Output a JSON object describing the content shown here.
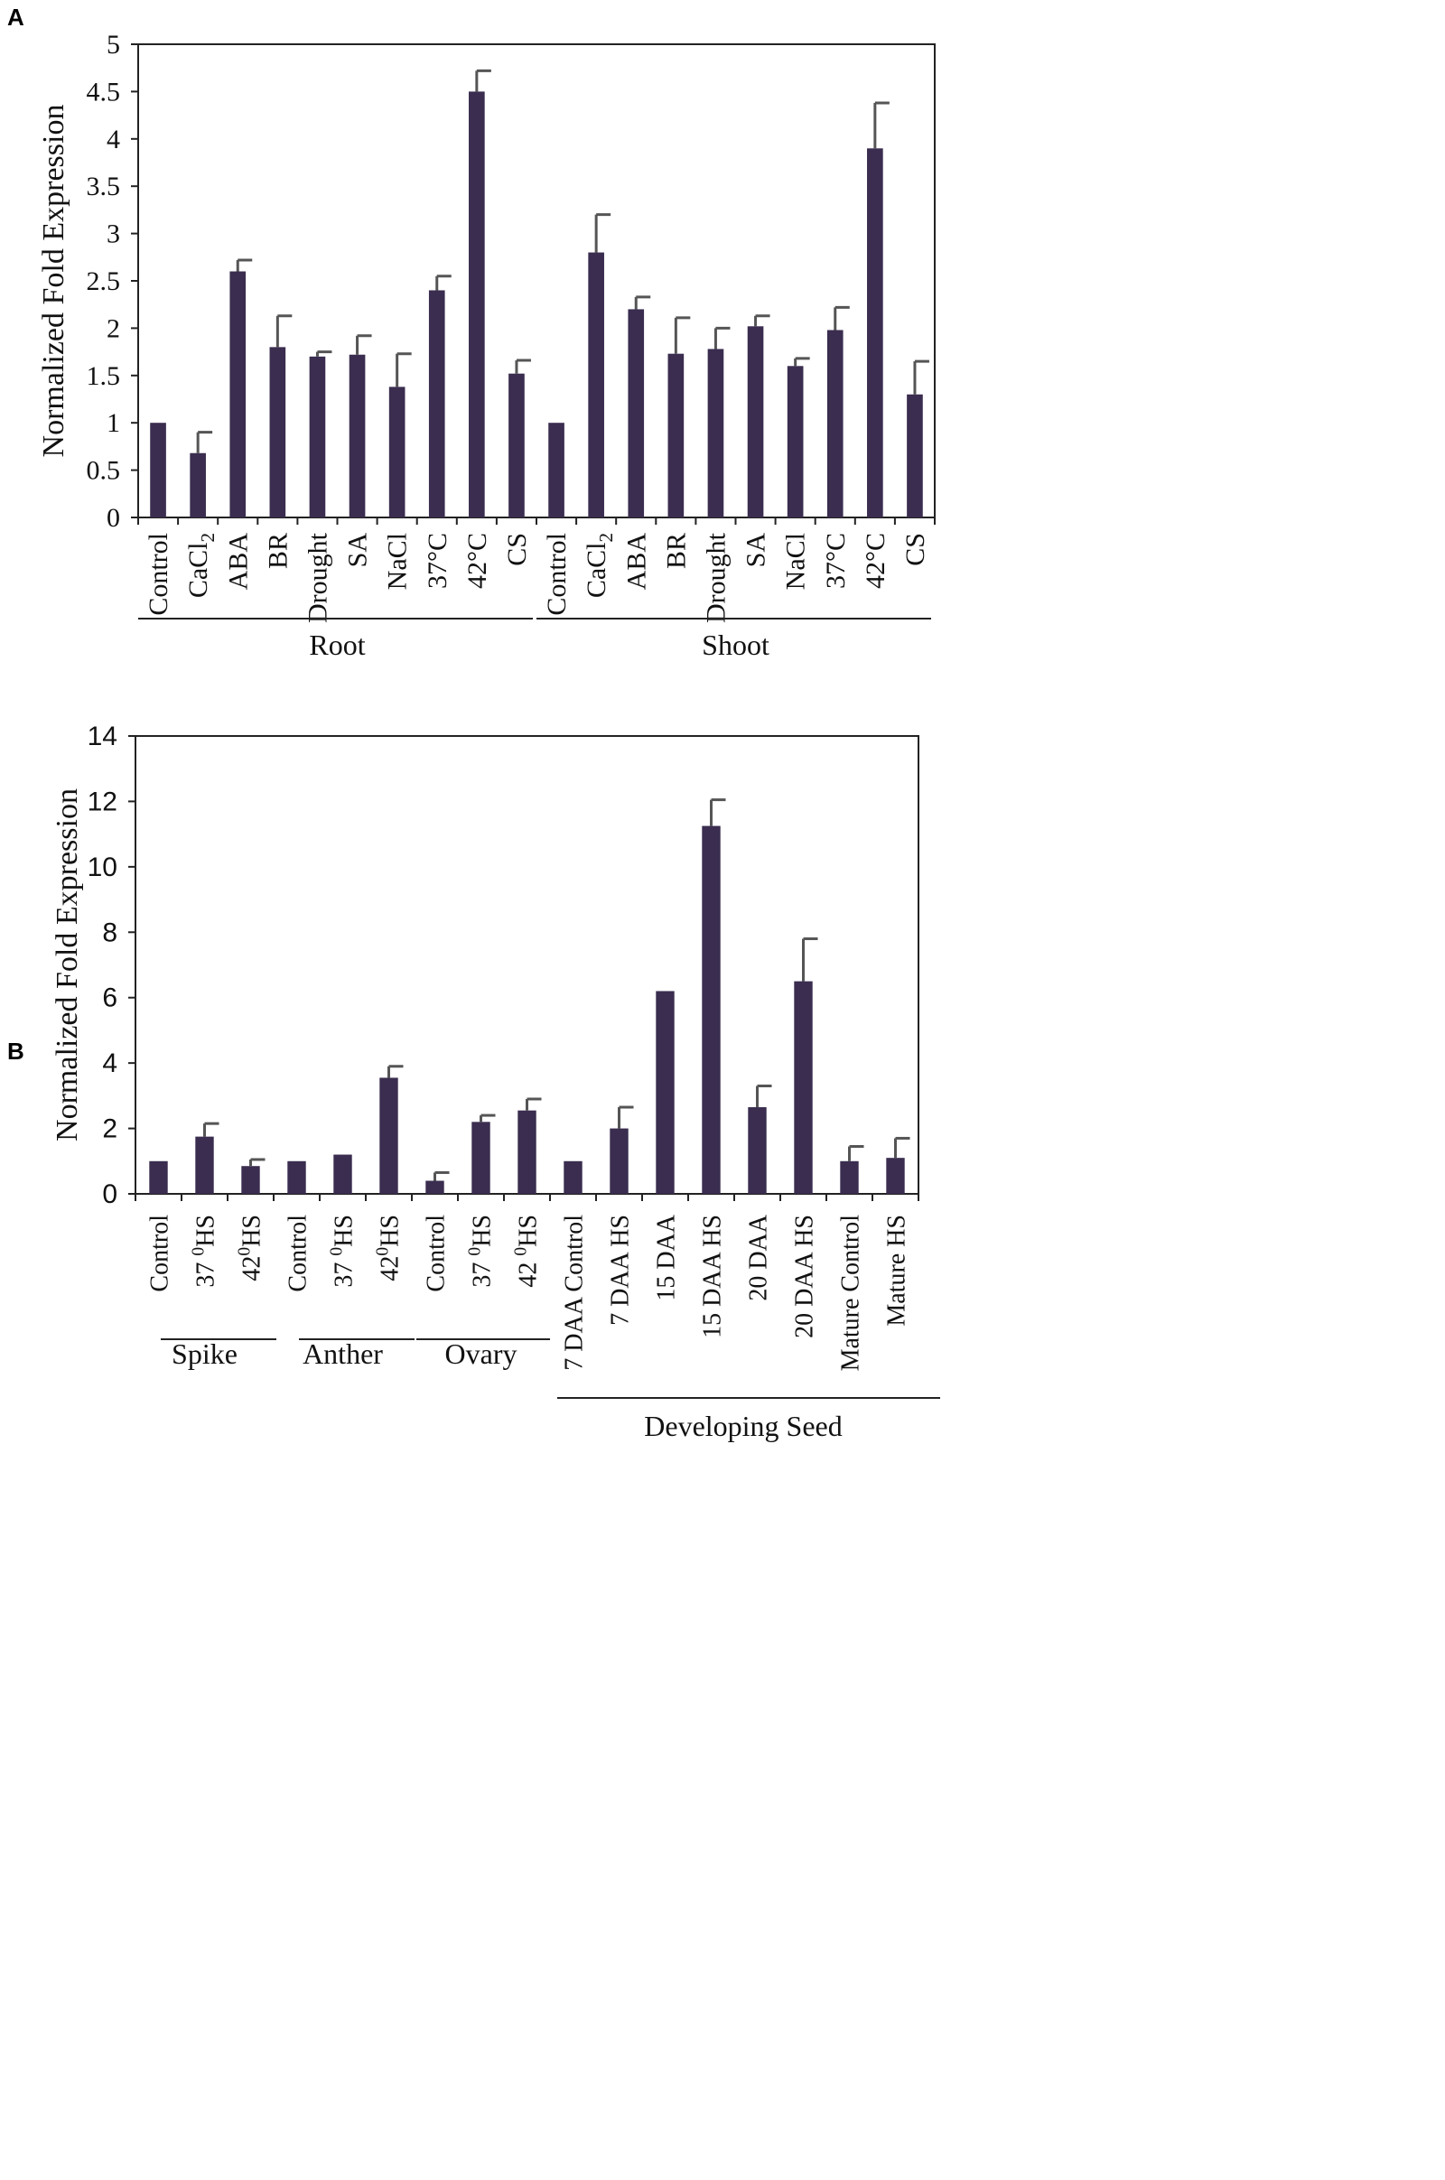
{
  "colors": {
    "bar": "#3a2d4f",
    "errorbar": "#555555",
    "axis": "#222222",
    "text": "#111111"
  },
  "chart_data": [
    {
      "panel": "A",
      "type": "bar",
      "ylabel": "Normalized Fold Expression",
      "ylim": [
        0,
        5
      ],
      "yticks": [
        "0",
        "0.5",
        "1",
        "1.5",
        "2",
        "2.5",
        "3",
        "3.5",
        "4",
        "4.5",
        "5"
      ],
      "categories": [
        {
          "label": "Control"
        },
        {
          "label": "CaCl",
          "sub": "2"
        },
        {
          "label": "ABA"
        },
        {
          "label": "BR"
        },
        {
          "label": "Drought"
        },
        {
          "label": "SA"
        },
        {
          "label": "NaCl"
        },
        {
          "label": "37°C"
        },
        {
          "label": "42°C"
        },
        {
          "label": "CS"
        },
        {
          "label": "Control"
        },
        {
          "label": "CaCl",
          "sub": "2"
        },
        {
          "label": "ABA"
        },
        {
          "label": "BR"
        },
        {
          "label": "Drought"
        },
        {
          "label": "SA"
        },
        {
          "label": "NaCl"
        },
        {
          "label": "37°C"
        },
        {
          "label": "42°C"
        },
        {
          "label": "CS"
        }
      ],
      "values": [
        1.0,
        0.68,
        2.6,
        1.8,
        1.7,
        1.72,
        1.38,
        2.4,
        4.5,
        1.52,
        1.0,
        2.8,
        2.2,
        1.73,
        1.78,
        2.02,
        1.6,
        1.98,
        3.9,
        1.3
      ],
      "errors": [
        0.0,
        0.22,
        0.12,
        0.33,
        0.05,
        0.2,
        0.35,
        0.15,
        0.22,
        0.14,
        0.0,
        0.4,
        0.13,
        0.38,
        0.22,
        0.11,
        0.08,
        0.24,
        0.48,
        0.35
      ],
      "groups": [
        {
          "name": "Root",
          "from": 0,
          "to": 9
        },
        {
          "name": "Shoot",
          "from": 10,
          "to": 19
        }
      ]
    },
    {
      "panel": "B",
      "type": "bar",
      "ylabel": "Normalized Fold Expression",
      "ylim": [
        0,
        14
      ],
      "yticks": [
        "0",
        "2",
        "4",
        "6",
        "8",
        "10",
        "12",
        "14"
      ],
      "categories": [
        {
          "label": "Control"
        },
        {
          "label": "37 ",
          "sup": "0",
          "tail": "HS"
        },
        {
          "label": "42",
          "sup": "0",
          "tail": "HS"
        },
        {
          "label": "Control"
        },
        {
          "label": "37 ",
          "sup": "0",
          "tail": "HS"
        },
        {
          "label": "42",
          "sup": "0",
          "tail": "HS"
        },
        {
          "label": "Control"
        },
        {
          "label": "37 ",
          "sup": "0",
          "tail": "HS"
        },
        {
          "label": "42 ",
          "sup": "0",
          "tail": "HS"
        },
        {
          "label": "7 DAA Control"
        },
        {
          "label": "7 DAA HS"
        },
        {
          "label": "15 DAA"
        },
        {
          "label": "15 DAA HS"
        },
        {
          "label": "20 DAA"
        },
        {
          "label": "20 DAA HS"
        },
        {
          "label": "Mature Control"
        },
        {
          "label": "Mature HS"
        }
      ],
      "values": [
        1.0,
        1.75,
        0.85,
        1.0,
        1.2,
        3.55,
        0.4,
        2.2,
        2.55,
        1.0,
        2.0,
        6.2,
        11.25,
        2.65,
        6.5,
        1.0,
        1.1
      ],
      "errors": [
        0.0,
        0.4,
        0.2,
        0.0,
        0.0,
        0.35,
        0.25,
        0.2,
        0.35,
        0.0,
        0.65,
        0.0,
        0.8,
        0.65,
        1.3,
        0.45,
        0.6
      ],
      "groups": [
        {
          "name": "Spike",
          "from": 0,
          "to": 2
        },
        {
          "name": "Anther",
          "from": 3,
          "to": 5
        },
        {
          "name": "Ovary",
          "from": 6,
          "to": 8
        },
        {
          "name": "Developing Seed",
          "from": 9,
          "to": 16
        }
      ]
    }
  ]
}
